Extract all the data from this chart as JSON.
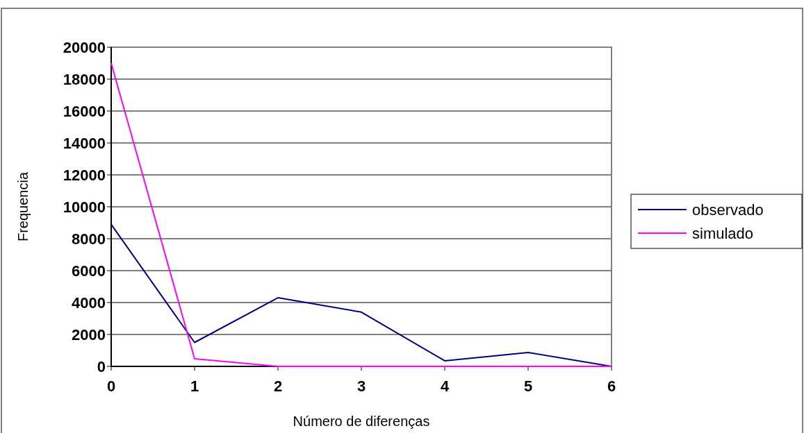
{
  "chart_data": {
    "type": "line",
    "xlabel": "Número de diferenças",
    "ylabel": "Frequencia",
    "x": [
      0,
      1,
      2,
      3,
      4,
      5,
      6
    ],
    "series": [
      {
        "name": "observado",
        "color": "#000080",
        "values": [
          8900,
          1500,
          4300,
          3400,
          350,
          870,
          0
        ]
      },
      {
        "name": "simulado",
        "color": "#ff00ff",
        "values": [
          19000,
          480,
          0,
          0,
          0,
          0,
          0
        ]
      }
    ],
    "xlim": [
      0,
      6
    ],
    "xticks": [
      0,
      1,
      2,
      3,
      4,
      5,
      6
    ],
    "ylim": [
      0,
      20000
    ],
    "yticks": [
      0,
      2000,
      4000,
      6000,
      8000,
      10000,
      12000,
      14000,
      16000,
      18000,
      20000
    ],
    "grid": "y",
    "legend": "right",
    "line_style": "solid"
  }
}
